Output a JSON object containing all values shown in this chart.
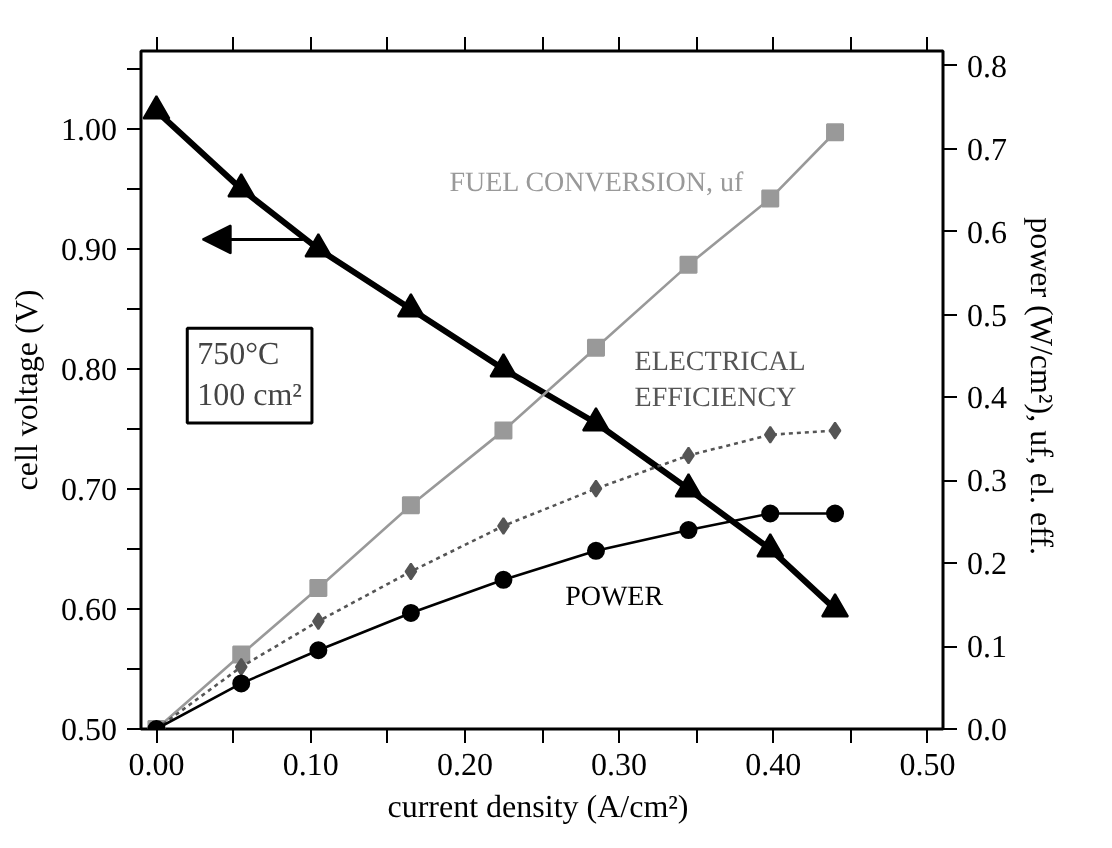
{
  "chart_data": {
    "type": "line",
    "xlabel": "current density  (A/cm²)",
    "ylabel": "cell voltage (V)",
    "y2label": "power  (W/cm²), uf, el. eff.",
    "x": [
      0,
      0.055,
      0.105,
      0.165,
      0.225,
      0.285,
      0.345,
      0.398,
      0.44
    ],
    "series": [
      {
        "color": "#000000",
        "marker": "triangle",
        "line_style": "solid",
        "values": [
          1.015,
          0.95,
          0.9,
          0.85,
          0.8,
          0.755,
          0.7,
          0.65,
          0.6
        ]
      },
      {
        "name": "FUEL CONVERSION, uf",
        "axis": "y2",
        "color": "#999999",
        "marker": "square",
        "line_style": "solid",
        "values": [
          0,
          0.09,
          0.17,
          0.27,
          0.36,
          0.46,
          0.56,
          0.64,
          0.72
        ]
      },
      {
        "name": "ELECTRICAL EFFICIENCY",
        "axis": "y2",
        "color": "#555555",
        "marker": "diamond",
        "line_style": "dotted",
        "values": [
          0,
          0.075,
          0.13,
          0.19,
          0.245,
          0.29,
          0.33,
          0.355,
          0.36
        ]
      },
      {
        "name": "POWER",
        "axis": "y2",
        "color": "#000000",
        "marker": "circle",
        "line_style": "solid",
        "values": [
          0,
          0.055,
          0.095,
          0.14,
          0.18,
          0.215,
          0.24,
          0.26,
          0.26
        ]
      }
    ],
    "xlim": [
      -0.01,
      0.51
    ],
    "ylim": [
      0.5,
      1.065
    ],
    "y2lim": [
      0,
      0.818
    ],
    "xticks": [
      {
        "value": 0,
        "label": "0.00"
      },
      {
        "value": 0.05,
        "label": null
      },
      {
        "value": 0.1,
        "label": "0.10"
      },
      {
        "value": 0.15,
        "label": null
      },
      {
        "value": 0.2,
        "label": "0.20"
      },
      {
        "value": 0.25,
        "label": null
      },
      {
        "value": 0.3,
        "label": "0.30"
      },
      {
        "value": 0.35,
        "label": null
      },
      {
        "value": 0.4,
        "label": "0.40"
      },
      {
        "value": 0.45,
        "label": null
      },
      {
        "value": 0.5,
        "label": "0.50"
      }
    ],
    "yticks": [
      {
        "value": 0.5,
        "label": "0.50"
      },
      {
        "value": 0.55,
        "label": null
      },
      {
        "value": 0.6,
        "label": "0.60"
      },
      {
        "value": 0.65,
        "label": null
      },
      {
        "value": 0.7,
        "label": "0.70"
      },
      {
        "value": 0.75,
        "label": null
      },
      {
        "value": 0.8,
        "label": "0.80"
      },
      {
        "value": 0.85,
        "label": null
      },
      {
        "value": 0.9,
        "label": "0.90"
      },
      {
        "value": 0.95,
        "label": null
      },
      {
        "value": 1.0,
        "label": "1.00"
      },
      {
        "value": 1.05,
        "label": null
      }
    ],
    "y2ticks": [
      {
        "value": 0,
        "label": "0.0"
      },
      {
        "value": 0.1,
        "label": "0.1"
      },
      {
        "value": 0.2,
        "label": "0.2"
      },
      {
        "value": 0.3,
        "label": "0.3"
      },
      {
        "value": 0.4,
        "label": "0.4"
      },
      {
        "value": 0.5,
        "label": "0.5"
      },
      {
        "value": 0.6,
        "label": "0.6"
      },
      {
        "value": 0.7,
        "label": "0.7"
      },
      {
        "value": 0.8,
        "label": "0.8"
      }
    ],
    "annotations": [
      "750°C\n100 cm²"
    ],
    "grid": false
  }
}
